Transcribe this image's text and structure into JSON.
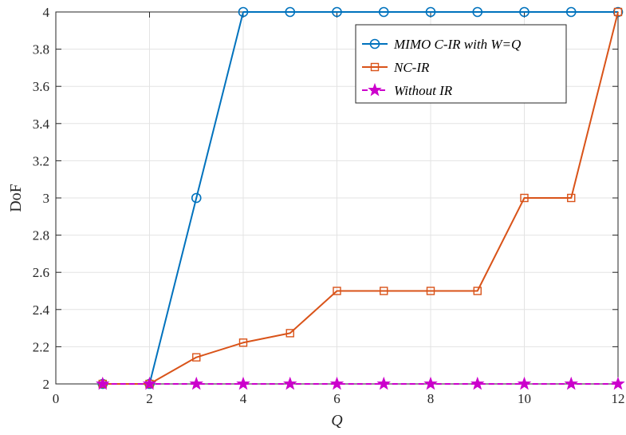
{
  "chart_data": {
    "type": "line",
    "title": "",
    "xlabel": "Q",
    "ylabel": "DoF",
    "xlim": [
      0,
      12
    ],
    "ylim": [
      2,
      4
    ],
    "xticks": [
      "0",
      "2",
      "4",
      "6",
      "8",
      "10",
      "12"
    ],
    "yticks": [
      "2",
      "2.2",
      "2.4",
      "2.6",
      "2.8",
      "3",
      "3.2",
      "3.4",
      "3.6",
      "3.8",
      "4"
    ],
    "grid": true,
    "legend_position": "top-right",
    "x": [
      1,
      2,
      3,
      4,
      5,
      6,
      7,
      8,
      9,
      10,
      11,
      12
    ],
    "series": [
      {
        "name": "MIMO C-IR with W=Q",
        "color": "#0072BD",
        "marker": "circle",
        "dash": "solid",
        "values": [
          2,
          2,
          3,
          4,
          4,
          4,
          4,
          4,
          4,
          4,
          4,
          4
        ]
      },
      {
        "name": "NC-IR",
        "color": "#D95319",
        "marker": "square",
        "dash": "solid",
        "values": [
          2,
          2,
          2.143,
          2.222,
          2.273,
          2.5,
          2.5,
          2.5,
          2.5,
          3,
          3,
          4
        ]
      },
      {
        "name": "Without IR",
        "color": "#CC00CC",
        "marker": "star",
        "dash": "dashed",
        "values": [
          2,
          2,
          2,
          2,
          2,
          2,
          2,
          2,
          2,
          2,
          2,
          2
        ]
      }
    ]
  }
}
